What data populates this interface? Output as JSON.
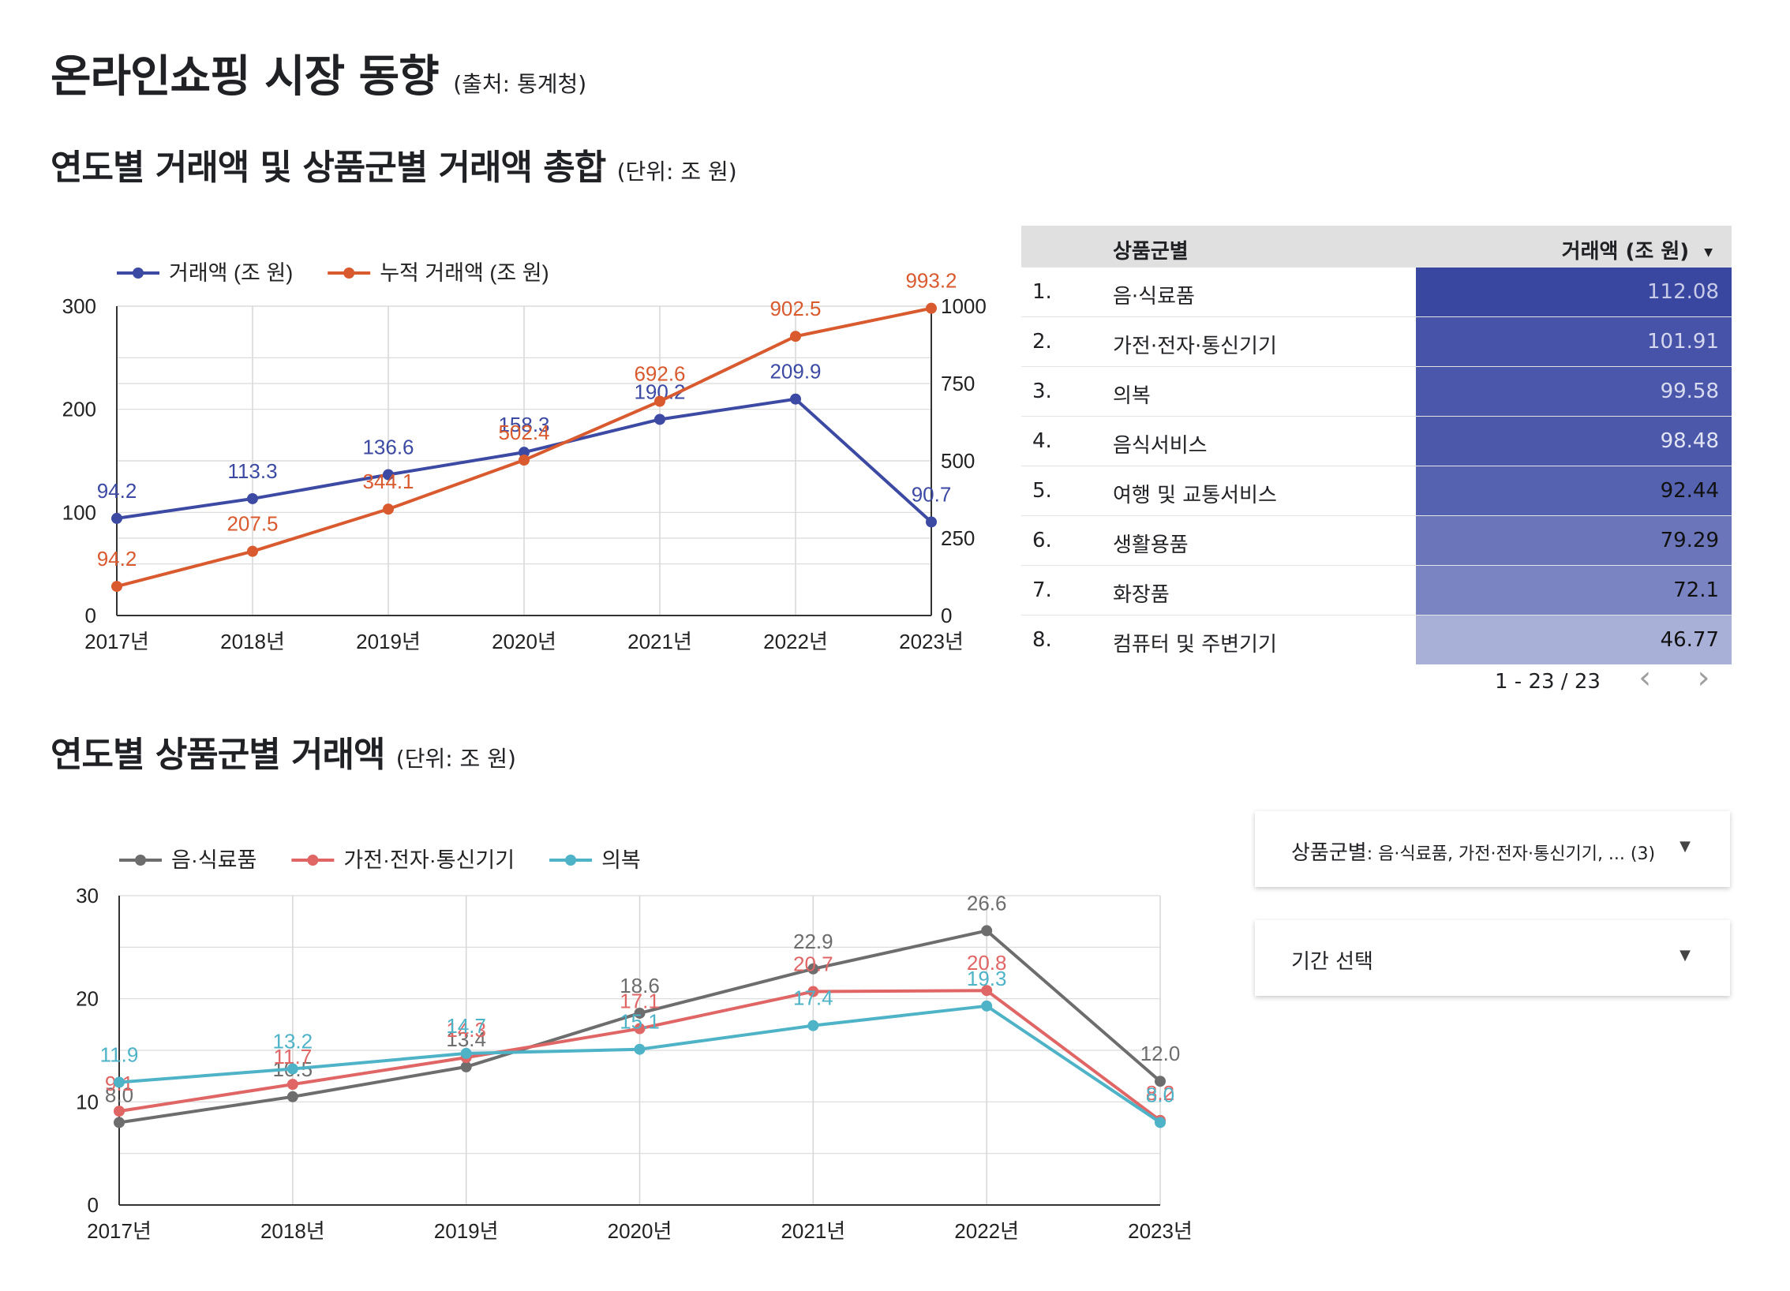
{
  "page": {
    "title": "온라인쇼핑 시장 동향",
    "title_note": "(출처: 통계청)"
  },
  "section1": {
    "title": "연도별 거래액 및 상품군별 거래액 총합",
    "note": "(단위: 조 원)"
  },
  "section2": {
    "title": "연도별 상품군별 거래액",
    "note": "(단위: 조 원)"
  },
  "chart_data": [
    {
      "type": "line",
      "categories": [
        "2017년",
        "2018년",
        "2019년",
        "2020년",
        "2021년",
        "2022년",
        "2023년"
      ],
      "ylim": [
        0,
        300
      ],
      "yticks": [
        0,
        100,
        200,
        300
      ],
      "y2lim": [
        0,
        1000
      ],
      "y2ticks": [
        0,
        250,
        500,
        750,
        1000
      ],
      "legend": "top-left",
      "grid": true,
      "series": [
        {
          "name": "거래액 (조 원)",
          "axis": "left",
          "color": "#3c4aa3",
          "values": [
            94.2,
            113.3,
            136.6,
            158.3,
            190.2,
            209.9,
            90.7
          ]
        },
        {
          "name": "누적 거래액 (조 원)",
          "axis": "right",
          "color": "#d85a2e",
          "values": [
            94.2,
            207.5,
            344.1,
            502.4,
            692.6,
            902.5,
            993.2
          ]
        }
      ]
    },
    {
      "type": "line",
      "categories": [
        "2017년",
        "2018년",
        "2019년",
        "2020년",
        "2021년",
        "2022년",
        "2023년"
      ],
      "ylim": [
        0,
        30
      ],
      "yticks": [
        0,
        10,
        20,
        30
      ],
      "legend": "top-left",
      "grid": true,
      "series": [
        {
          "name": "음·식료품",
          "color": "#6d6d6d",
          "values": [
            8.0,
            10.5,
            13.4,
            18.6,
            22.9,
            26.6,
            12.0
          ]
        },
        {
          "name": "가전·전자·통신기기",
          "color": "#e06666",
          "values": [
            9.1,
            11.7,
            14.3,
            17.1,
            20.7,
            20.8,
            8.2
          ]
        },
        {
          "name": "의복",
          "color": "#4fb3c8",
          "values": [
            11.9,
            13.2,
            14.7,
            15.1,
            17.4,
            19.3,
            8.0
          ]
        }
      ]
    }
  ],
  "table": {
    "col_name": "상품군별",
    "col_value": "거래액 (조 원)",
    "sort_icon": "triangle-down",
    "rows": [
      {
        "idx": "1.",
        "name": "음·식료품",
        "value": "112.08",
        "shade": "#3947a0",
        "text": "#c7cbe8"
      },
      {
        "idx": "2.",
        "name": "가전·전자·통신기기",
        "value": "101.91",
        "shade": "#4653a8",
        "text": "#d4d7ee"
      },
      {
        "idx": "3.",
        "name": "의복",
        "value": "99.58",
        "shade": "#4a57aa",
        "text": "#d9dcf0"
      },
      {
        "idx": "4.",
        "name": "음식서비스",
        "value": "98.48",
        "shade": "#4c59ab",
        "text": "#e2e4f4"
      },
      {
        "idx": "5.",
        "name": "여행 및 교통서비스",
        "value": "92.44",
        "shade": "#5562b0",
        "text": "#111111"
      },
      {
        "idx": "6.",
        "name": "생활용품",
        "value": "79.29",
        "shade": "#6b76ba",
        "text": "#111111"
      },
      {
        "idx": "7.",
        "name": "화장품",
        "value": "72.1",
        "shade": "#7a84c2",
        "text": "#111111"
      },
      {
        "idx": "8.",
        "name": "컴퓨터 및 주변기기",
        "value": "46.77",
        "shade": "#a9b0d8",
        "text": "#111111"
      }
    ],
    "pagination": "1 - 23 / 23"
  },
  "controls": {
    "category_filter_label": "상품군별",
    "category_filter_value": ": 음·식료품, 가전·전자·통신기기, ... (3)",
    "period_label": "기간 선택"
  }
}
